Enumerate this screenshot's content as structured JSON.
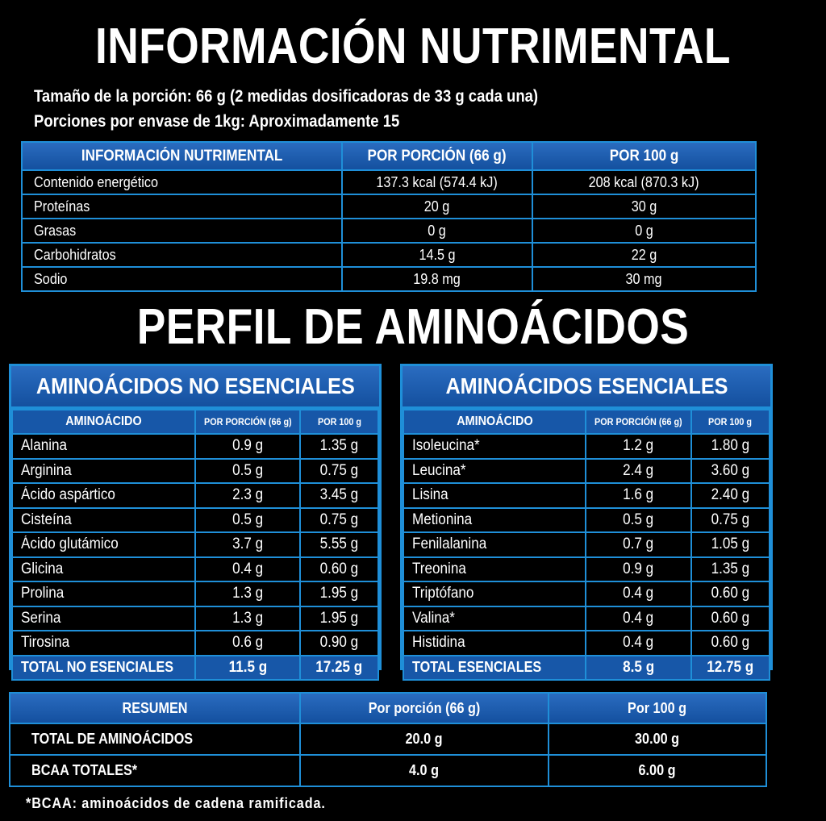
{
  "title_nutrition": "INFORMACIÓN NUTRIMENTAL",
  "serving_size": "Tamaño de la porción: 66 g (2 medidas dosificadoras de 33 g cada una)",
  "servings_per_container": "Porciones por envase de 1kg: Aproximadamente 15",
  "nutrition": {
    "headers": [
      "INFORMACIÓN NUTRIMENTAL",
      "POR PORCIÓN (66 g)",
      "POR 100 g"
    ],
    "rows": [
      {
        "name": "Contenido energético",
        "per_serving": "137.3 kcal (574.4 kJ)",
        "per_100g": "208 kcal (870.3 kJ)"
      },
      {
        "name": "Proteínas",
        "per_serving": "20 g",
        "per_100g": "30 g"
      },
      {
        "name": "Grasas",
        "per_serving": "0 g",
        "per_100g": "0 g"
      },
      {
        "name": "Carbohidratos",
        "per_serving": "14.5 g",
        "per_100g": "22 g"
      },
      {
        "name": "Sodio",
        "per_serving": "19.8 mg",
        "per_100g": "30 mg"
      }
    ]
  },
  "title_amino": "PERFIL DE AMINOÁCIDOS",
  "non_essential": {
    "title": "AMINOÁCIDOS NO ESENCIALES",
    "headers": [
      "AMINOÁCIDO",
      "POR PORCIÓN (66 g)",
      "POR 100 g"
    ],
    "rows": [
      {
        "name": "Alanina",
        "per_serving": "0.9 g",
        "per_100g": "1.35 g"
      },
      {
        "name": "Arginina",
        "per_serving": "0.5 g",
        "per_100g": "0.75 g"
      },
      {
        "name": "Ácido aspártico",
        "per_serving": "2.3 g",
        "per_100g": "3.45 g"
      },
      {
        "name": "Cisteína",
        "per_serving": "0.5 g",
        "per_100g": "0.75 g"
      },
      {
        "name": "Ácido glutámico",
        "per_serving": "3.7 g",
        "per_100g": "5.55 g"
      },
      {
        "name": "Glicina",
        "per_serving": "0.4 g",
        "per_100g": "0.60 g"
      },
      {
        "name": "Prolina",
        "per_serving": "1.3 g",
        "per_100g": "1.95 g"
      },
      {
        "name": "Serina",
        "per_serving": "1.3 g",
        "per_100g": "1.95 g"
      },
      {
        "name": "Tirosina",
        "per_serving": "0.6 g",
        "per_100g": "0.90 g"
      }
    ],
    "total": {
      "name": "TOTAL NO ESENCIALES",
      "per_serving": "11.5 g",
      "per_100g": "17.25 g"
    }
  },
  "essential": {
    "title": "AMINOÁCIDOS ESENCIALES",
    "headers": [
      "AMINOÁCIDO",
      "POR PORCIÓN (66 g)",
      "POR 100 g"
    ],
    "rows": [
      {
        "name": "Isoleucina*",
        "per_serving": "1.2 g",
        "per_100g": "1.80 g"
      },
      {
        "name": "Leucina*",
        "per_serving": "2.4 g",
        "per_100g": "3.60 g"
      },
      {
        "name": "Lisina",
        "per_serving": "1.6 g",
        "per_100g": "2.40 g"
      },
      {
        "name": "Metionina",
        "per_serving": "0.5 g",
        "per_100g": "0.75 g"
      },
      {
        "name": "Fenilalanina",
        "per_serving": "0.7 g",
        "per_100g": "1.05 g"
      },
      {
        "name": "Treonina",
        "per_serving": "0.9 g",
        "per_100g": "1.35 g"
      },
      {
        "name": "Triptófano",
        "per_serving": "0.4 g",
        "per_100g": "0.60 g"
      },
      {
        "name": "Valina*",
        "per_serving": "0.4 g",
        "per_100g": "0.60 g"
      },
      {
        "name": "Histidina",
        "per_serving": "0.4 g",
        "per_100g": "0.60 g"
      }
    ],
    "total": {
      "name": "TOTAL ESENCIALES",
      "per_serving": "8.5 g",
      "per_100g": "12.75 g"
    }
  },
  "summary": {
    "headers": [
      "RESUMEN",
      "Por porción (66 g)",
      "Por 100 g"
    ],
    "rows": [
      {
        "name": "TOTAL DE AMINOÁCIDOS",
        "per_serving": "20.0 g",
        "per_100g": "30.00 g"
      },
      {
        "name": "BCAA TOTALES*",
        "per_serving": "4.0 g",
        "per_100g": "6.00 g"
      }
    ]
  },
  "footnote": "*BCAA: aminoácidos de cadena ramificada."
}
